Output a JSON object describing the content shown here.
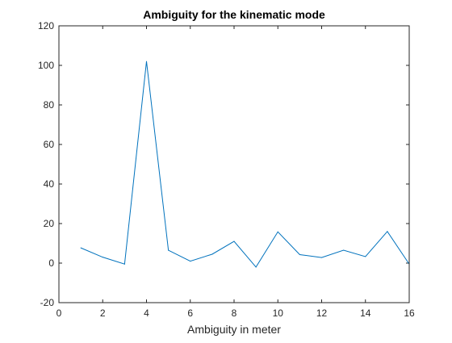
{
  "chart_data": {
    "type": "line",
    "title": "Ambiguity for the kinematic mode",
    "xlabel": "Ambiguity in meter",
    "ylabel": "",
    "xlim": [
      0,
      16
    ],
    "ylim": [
      -20,
      120
    ],
    "xticks": [
      0,
      2,
      4,
      6,
      8,
      10,
      12,
      14,
      16
    ],
    "yticks": [
      -20,
      0,
      20,
      40,
      60,
      80,
      100,
      120
    ],
    "grid": false,
    "series": [
      {
        "color": "#0072BD",
        "x": [
          1,
          2,
          3,
          4,
          5,
          6,
          7,
          8,
          9,
          10,
          11,
          12,
          13,
          14,
          15,
          16
        ],
        "y": [
          7.7,
          3.0,
          -0.5,
          102,
          6.5,
          1.0,
          4.5,
          11.0,
          -2.0,
          15.8,
          4.3,
          2.8,
          6.5,
          3.3,
          16.0,
          -0.5
        ]
      }
    ]
  }
}
